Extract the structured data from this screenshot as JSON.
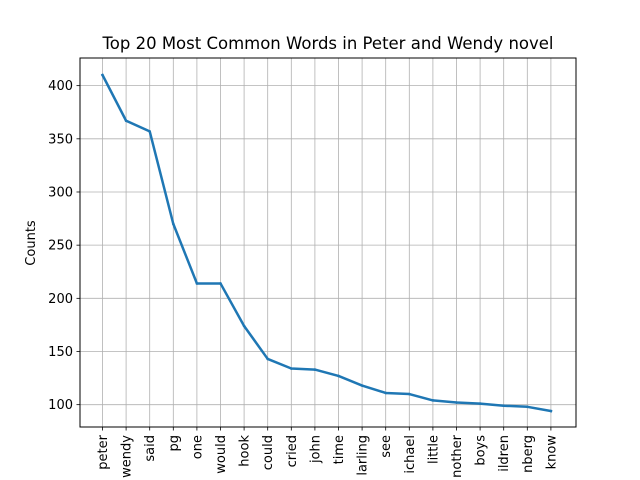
{
  "chart_data": {
    "type": "line",
    "title": "Top 20 Most Common Words in Peter and Wendy novel",
    "xlabel": "",
    "ylabel": "Counts",
    "categories": [
      "peter",
      "wendy",
      "said",
      "pg",
      "one",
      "would",
      "hook",
      "could",
      "cried",
      "john",
      "time",
      "darling",
      "see",
      "michael",
      "little",
      "mother",
      "boys",
      "children",
      "gutenberg",
      "know"
    ],
    "x_tick_labels": [
      "peter",
      "wendy",
      "said",
      "pg",
      "one",
      "would",
      "hook",
      "could",
      "cried",
      "john",
      "time",
      "larling",
      "see",
      "ichael",
      "little",
      "nother",
      "boys",
      "ildren",
      "nberg",
      "know"
    ],
    "series": [
      {
        "values": [
          410,
          367,
          357,
          270,
          214,
          214,
          174,
          143,
          134,
          133,
          127,
          118,
          111,
          110,
          104,
          102,
          101,
          99,
          98,
          94
        ],
        "color": "#1f77b4"
      }
    ],
    "yticks": [
      100,
      150,
      200,
      250,
      300,
      350,
      400
    ],
    "ylim": [
      79,
      426
    ],
    "grid": true,
    "legend": "none"
  }
}
